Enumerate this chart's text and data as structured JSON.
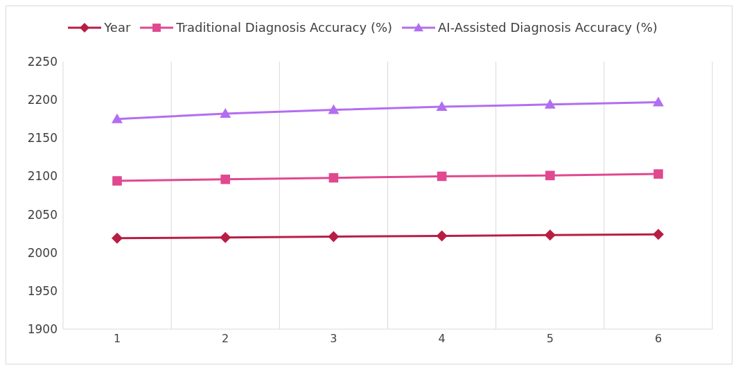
{
  "chart_data": {
    "type": "line",
    "categories": [
      "1",
      "2",
      "3",
      "4",
      "5",
      "6"
    ],
    "series": [
      {
        "name": "Year",
        "color": "#b81d44",
        "marker": "diamond",
        "values": [
          2019,
          2020,
          2021,
          2022,
          2023,
          2024
        ]
      },
      {
        "name": "Traditional Diagnosis Accuracy (%)",
        "color": "#e0488f",
        "marker": "square",
        "values": [
          2094,
          2096,
          2098,
          2100,
          2101,
          2103
        ]
      },
      {
        "name": "AI-Assisted Diagnosis Accuracy (%)",
        "color": "#b26ef0",
        "marker": "triangle",
        "values": [
          2175,
          2182,
          2187,
          2191,
          2194,
          2197
        ]
      }
    ],
    "ylim": [
      1900,
      2250
    ],
    "yticks": [
      1900,
      1950,
      2000,
      2050,
      2100,
      2150,
      2200,
      2250
    ],
    "grid": "x",
    "legend": "top",
    "line_style": "solid"
  }
}
